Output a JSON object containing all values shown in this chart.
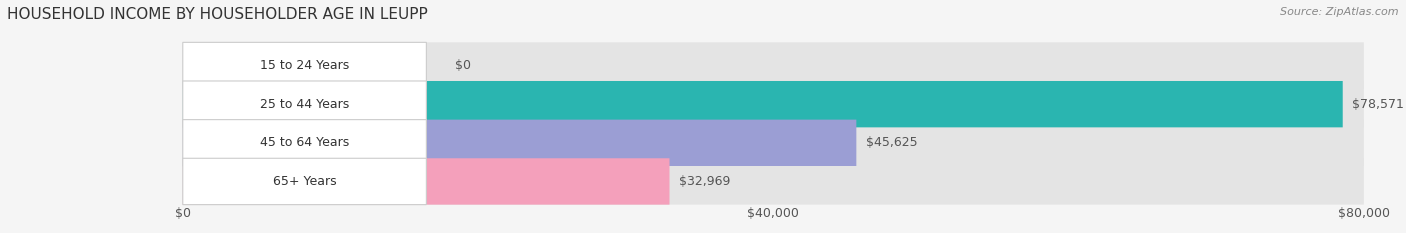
{
  "title": "HOUSEHOLD INCOME BY HOUSEHOLDER AGE IN LEUPP",
  "source": "Source: ZipAtlas.com",
  "categories": [
    "15 to 24 Years",
    "25 to 44 Years",
    "45 to 64 Years",
    "65+ Years"
  ],
  "values": [
    0,
    78571,
    45625,
    32969
  ],
  "bar_colors": [
    "#c9a8d4",
    "#2ab5b0",
    "#9b9ed4",
    "#f4a0bb"
  ],
  "value_labels": [
    "$0",
    "$78,571",
    "$45,625",
    "$32,969"
  ],
  "xlim": [
    0,
    80000
  ],
  "xticks": [
    0,
    40000,
    80000
  ],
  "xtick_labels": [
    "$0",
    "$40,000",
    "$80,000"
  ],
  "bg_color": "#f5f5f5",
  "bar_bg_color": "#e4e4e4",
  "title_fontsize": 11,
  "label_fontsize": 9,
  "value_fontsize": 9,
  "source_fontsize": 8
}
